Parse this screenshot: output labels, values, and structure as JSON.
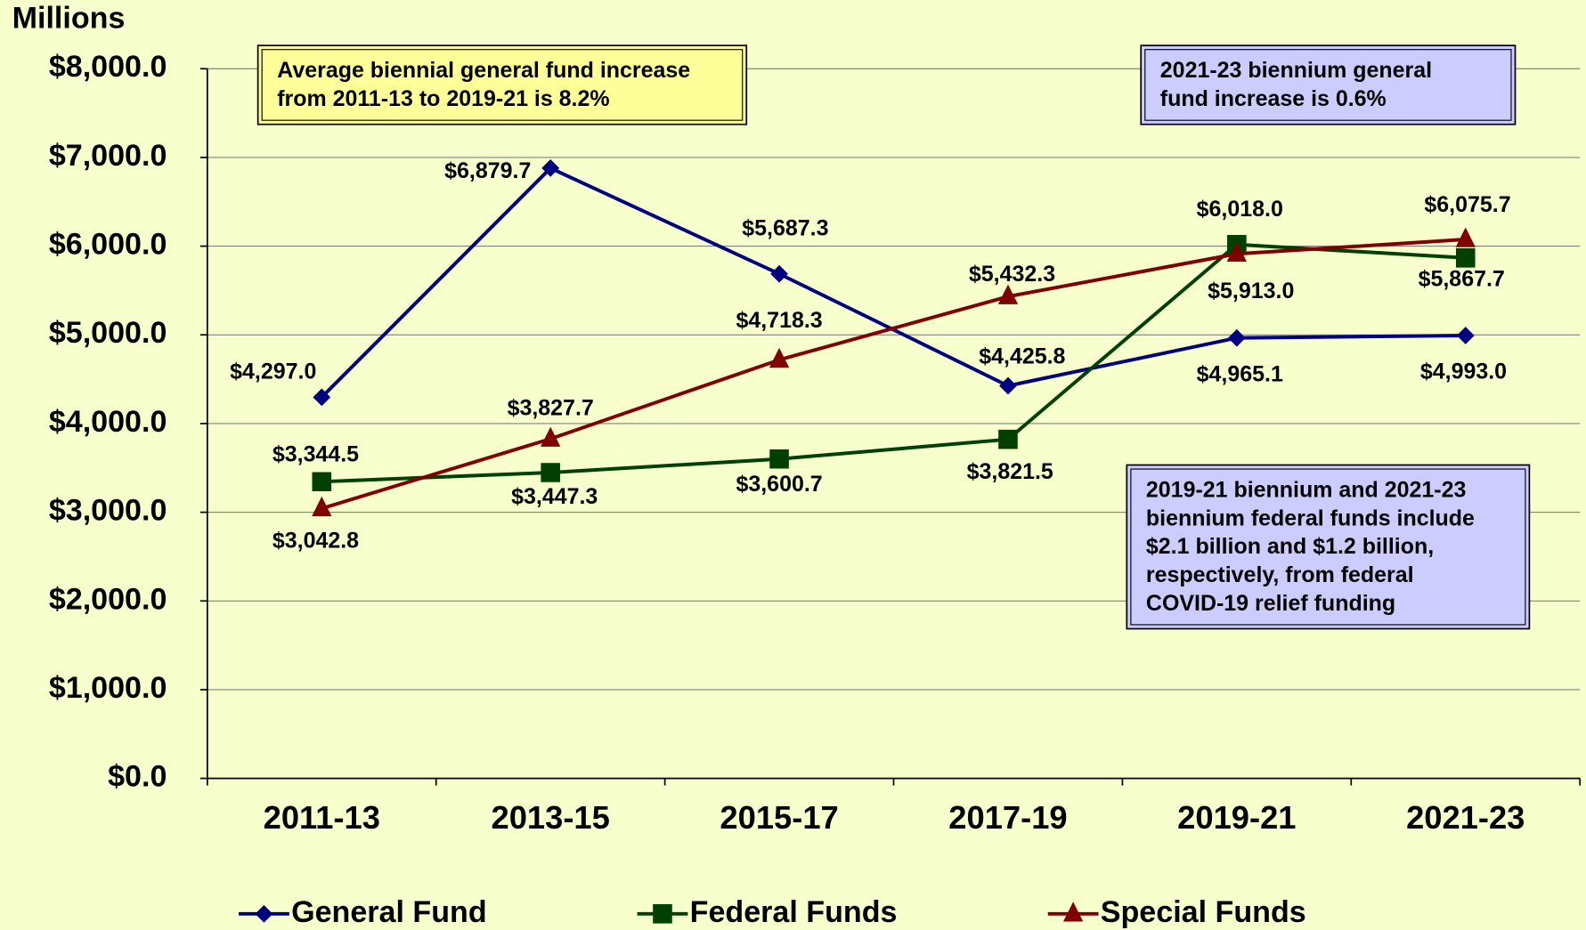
{
  "chart_data": {
    "type": "line",
    "y_axis_label": "Millions",
    "categories": [
      "2011-13",
      "2013-15",
      "2015-17",
      "2017-19",
      "2019-21",
      "2021-23"
    ],
    "series": [
      {
        "name": "General Fund",
        "color": "#000080",
        "marker": "diamond",
        "values": [
          4297.0,
          6879.7,
          5687.3,
          4425.8,
          4965.1,
          4993.0
        ],
        "value_labels": [
          "$4,297.0",
          "$6,879.7",
          "$5,687.3",
          "$4,425.8",
          "$4,965.1",
          "$4,993.0"
        ]
      },
      {
        "name": "Federal Funds",
        "color": "#004000",
        "marker": "square",
        "values": [
          3344.5,
          3447.3,
          3600.7,
          3821.5,
          6018.0,
          5867.7
        ],
        "value_labels": [
          "$3,344.5",
          "$3,447.3",
          "$3,600.7",
          "$3,821.5",
          "$6,018.0",
          "$5,867.7"
        ]
      },
      {
        "name": "Special Funds",
        "color": "#800000",
        "marker": "triangle",
        "values": [
          3042.8,
          3827.7,
          4718.3,
          5432.3,
          5913.0,
          6075.7
        ],
        "value_labels": [
          "$3,042.8",
          "$3,827.7",
          "$4,718.3",
          "$5,432.3",
          "$5,913.0",
          "$6,075.7"
        ]
      }
    ],
    "ylim": [
      0,
      8000
    ],
    "yticks": [
      {
        "value": 0,
        "label": "$0.0"
      },
      {
        "value": 1000,
        "label": "$1,000.0"
      },
      {
        "value": 2000,
        "label": "$2,000.0"
      },
      {
        "value": 3000,
        "label": "$3,000.0"
      },
      {
        "value": 4000,
        "label": "$4,000.0"
      },
      {
        "value": 5000,
        "label": "$5,000.0"
      },
      {
        "value": 6000,
        "label": "$6,000.0"
      },
      {
        "value": 7000,
        "label": "$7,000.0"
      },
      {
        "value": 8000,
        "label": "$8,000.0"
      }
    ],
    "grid": true,
    "legend": "bottom",
    "annotations": [
      {
        "lines": [
          "Average biennial general fund increase",
          "from 2011-13 to 2019-21 is 8.2%"
        ],
        "color": "#ffff99"
      },
      {
        "lines": [
          "2021-23 biennium general",
          "fund increase is 0.6%"
        ],
        "color": "#ccccff"
      },
      {
        "lines": [
          "2019-21 biennium and 2021-23",
          "biennium federal funds include",
          "$2.1 billion and $1.2 billion,",
          "respectively, from federal",
          "COVID-19 relief funding"
        ],
        "color": "#ccccff"
      }
    ]
  }
}
